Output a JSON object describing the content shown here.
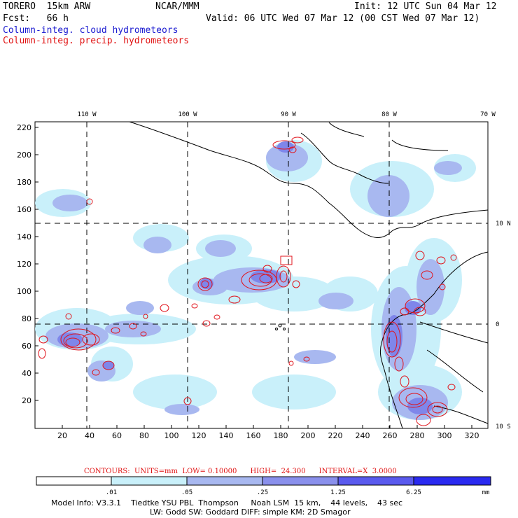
{
  "header": {
    "model": "TORERO  15km ARW",
    "org": "NCAR/MMM",
    "init": "Init: 12 UTC Sun 04 Mar 12",
    "fcst": "Fcst:   66 h",
    "valid": "Valid: 06 UTC Wed 07 Mar 12 (00 CST Wed 07 Mar 12)",
    "field1": "Column-integ. cloud hydrometeors",
    "field2": "Column-integ. precip. hydrometeors"
  },
  "map": {
    "top_lon_labels": [
      "110 W",
      "100 W",
      "90 W",
      "80 W",
      "70 W"
    ],
    "right_lat_labels": [
      "10 N",
      "0",
      "10 S"
    ],
    "y_ticks": [
      "220",
      "200",
      "180",
      "160",
      "140",
      "120",
      "100",
      "80",
      "60",
      "40",
      "20"
    ],
    "x_ticks": [
      "20",
      "40",
      "60",
      "80",
      "100",
      "120",
      "140",
      "160",
      "180",
      "200",
      "220",
      "240",
      "260",
      "280",
      "300",
      "320"
    ],
    "colors": {
      "cloud_light": "#c9f0fa",
      "cloud_mid": "#a8b8f0",
      "cloud_dark": "#7f86ea",
      "precip": "#e0141c",
      "coast": "#000000"
    }
  },
  "contours_line": "CONTOURS:  UNITS=mm  LOW= 0.10000      HIGH=  24.300      INTERVAL=X  3.0000",
  "colorbar": {
    "labels": [
      ".01",
      ".05",
      ".25",
      "1.25",
      "6.25"
    ],
    "unit": "mm",
    "colors": [
      "#ffffff",
      "#c9f0fa",
      "#a8b8f0",
      "#8a90ec",
      "#5a5aee",
      "#2a2af0"
    ]
  },
  "model_info": {
    "line1": "Model Info: V3.3.1    Tiedtke YSU PBL  Thompson     Noah LSM  15 km,    44 levels,    43 sec",
    "line2": "LW: Godd SW: Goddard DIFF: simple KM: 2D Smagor"
  }
}
